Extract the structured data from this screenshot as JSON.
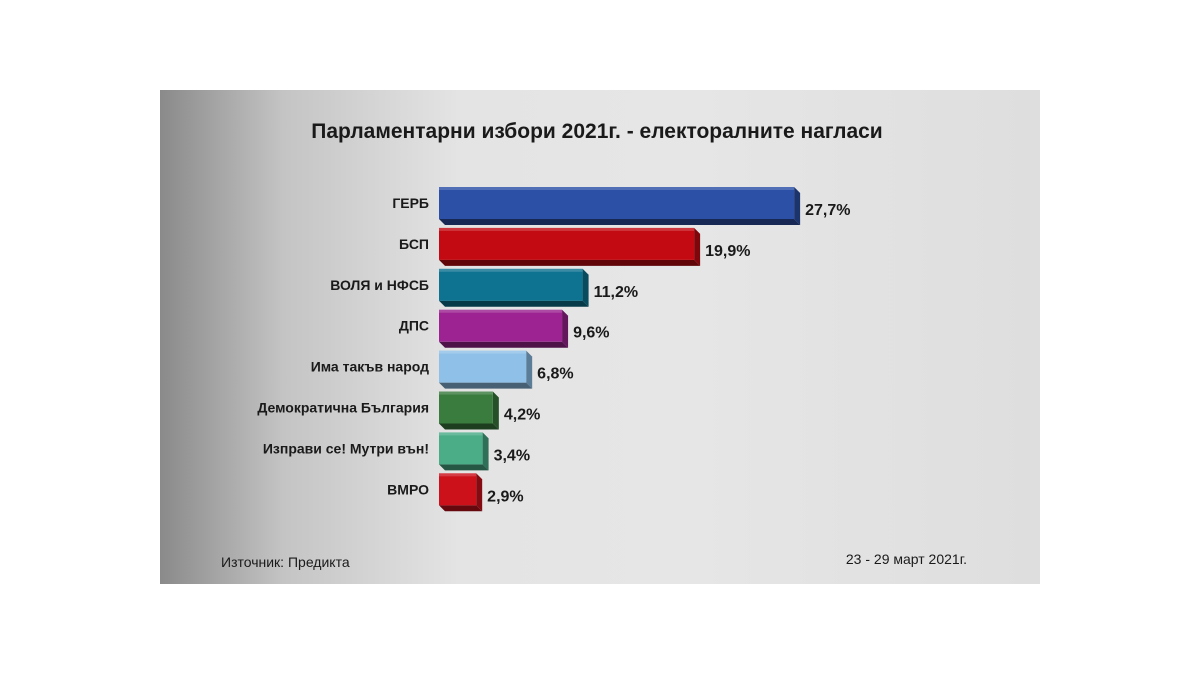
{
  "chart_data": {
    "type": "bar",
    "orientation": "horizontal",
    "title": "Парламентарни избори 2021г. - електоралните нагласи",
    "categories": [
      "ГЕРБ",
      "БСП",
      "ВОЛЯ и НФСБ",
      "ДПС",
      "Има такъв народ",
      "Демократична  България",
      "Изправи се! Мутри вън!",
      "ВМРО"
    ],
    "values": [
      27.7,
      19.9,
      11.2,
      9.6,
      6.8,
      4.2,
      3.4,
      2.9
    ],
    "value_labels": [
      "27,7%",
      "19,9%",
      "11,2%",
      "9,6%",
      "6,8%",
      "4,2%",
      "3,4%",
      "2,9%"
    ],
    "colors": [
      "#2b50a6",
      "#c30a12",
      "#0e7390",
      "#9c2391",
      "#8ec0e8",
      "#3a7c3e",
      "#4aad88",
      "#cc111b"
    ],
    "grid": false,
    "legend": "none"
  },
  "footer": {
    "source": "Източник:  Предикта",
    "date": "23 - 29 март 2021г."
  }
}
